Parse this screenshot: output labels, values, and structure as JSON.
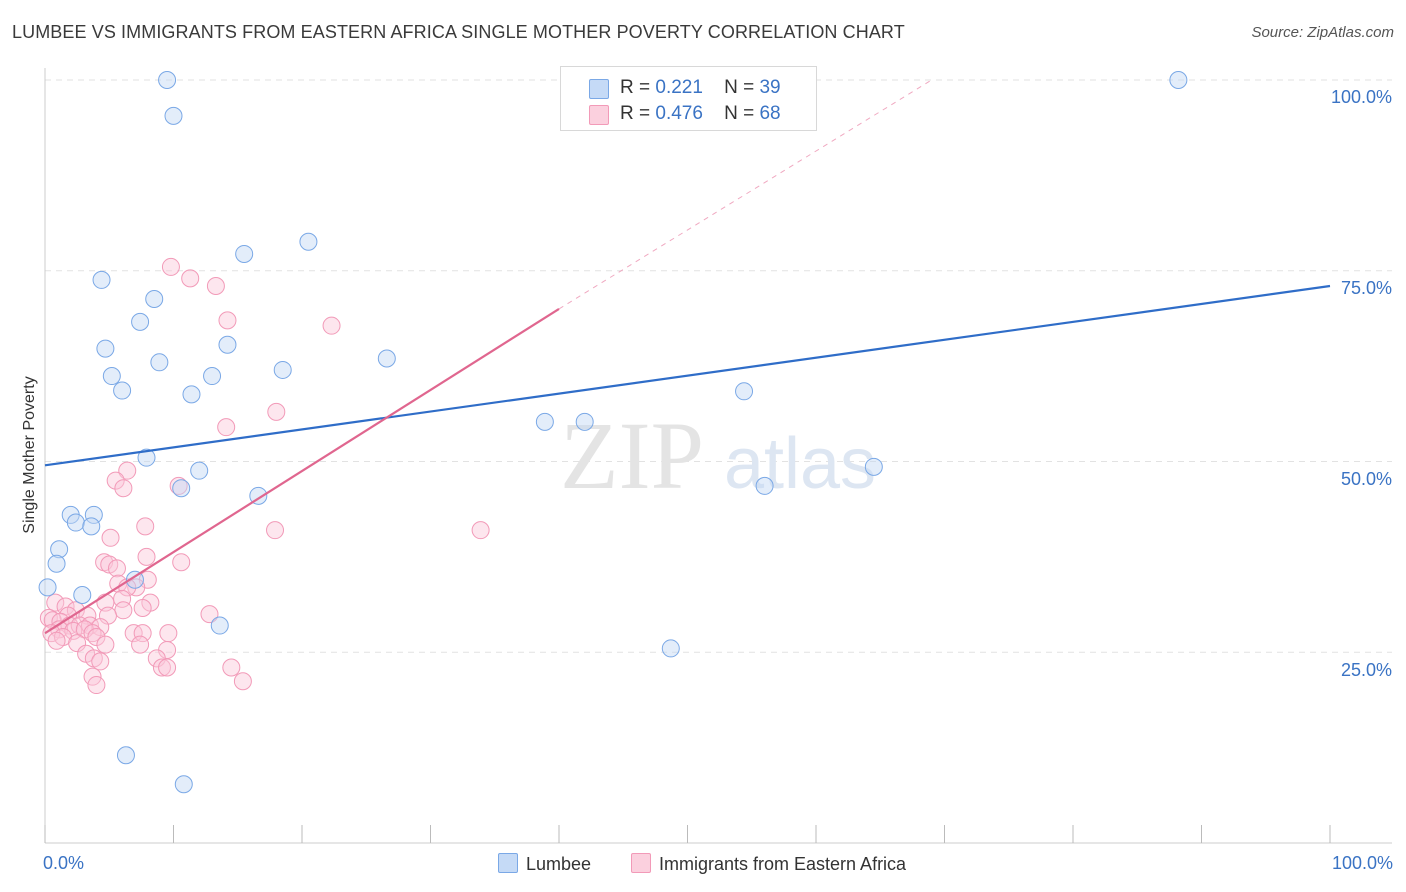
{
  "title": "LUMBEE VS IMMIGRANTS FROM EASTERN AFRICA SINGLE MOTHER POVERTY CORRELATION CHART",
  "source": "Source: ZipAtlas.com",
  "watermark": {
    "zip": "ZIP",
    "atlas": "atlas"
  },
  "legend_top": {
    "rows": [
      {
        "r_label": "R =",
        "r_value": "0.221",
        "n_label": "N =",
        "n_value": "39"
      },
      {
        "r_label": "R =",
        "r_value": "0.476",
        "n_label": "N =",
        "n_value": "68"
      }
    ]
  },
  "legend_bottom": {
    "series1": "Lumbee",
    "series2": "Immigrants from Eastern Africa"
  },
  "chart_data": {
    "type": "scatter",
    "title": "LUMBEE VS IMMIGRANTS FROM EASTERN AFRICA SINGLE MOTHER POVERTY CORRELATION CHART",
    "xlabel": "",
    "ylabel": "Single Mother Poverty",
    "xlim": [
      0,
      1
    ],
    "ylim": [
      0,
      1.03
    ],
    "x_tick_labels": [
      "0.0%",
      "100.0%"
    ],
    "y_ticks": [
      0.25,
      0.5,
      0.75,
      1.0
    ],
    "y_tick_labels": [
      "25.0%",
      "50.0%",
      "75.0%",
      "100.0%"
    ],
    "grid": true,
    "legend_position": "top-center",
    "colors": {
      "lumbee": "#7aa8e6",
      "eastern_africa": "#f29ab8",
      "lumbee_line": "#2f6dc8",
      "eastern_africa_line": "#e0668f"
    },
    "series": [
      {
        "name": "Lumbee",
        "r": 0.221,
        "n": 39,
        "trend": {
          "x": [
            0,
            1
          ],
          "y": [
            0.495,
            0.73
          ],
          "style": "solid"
        },
        "points": [
          [
            0.095,
            1.0
          ],
          [
            0.1,
            0.953
          ],
          [
            0.882,
            1.0
          ],
          [
            0.205,
            0.788
          ],
          [
            0.155,
            0.772
          ],
          [
            0.044,
            0.738
          ],
          [
            0.085,
            0.713
          ],
          [
            0.074,
            0.683
          ],
          [
            0.142,
            0.653
          ],
          [
            0.047,
            0.648
          ],
          [
            0.089,
            0.63
          ],
          [
            0.266,
            0.635
          ],
          [
            0.185,
            0.62
          ],
          [
            0.052,
            0.612
          ],
          [
            0.13,
            0.612
          ],
          [
            0.06,
            0.593
          ],
          [
            0.114,
            0.588
          ],
          [
            0.544,
            0.592
          ],
          [
            0.389,
            0.552
          ],
          [
            0.42,
            0.552
          ],
          [
            0.079,
            0.505
          ],
          [
            0.12,
            0.488
          ],
          [
            0.645,
            0.493
          ],
          [
            0.56,
            0.468
          ],
          [
            0.106,
            0.465
          ],
          [
            0.166,
            0.455
          ],
          [
            0.02,
            0.43
          ],
          [
            0.038,
            0.43
          ],
          [
            0.024,
            0.42
          ],
          [
            0.036,
            0.415
          ],
          [
            0.011,
            0.385
          ],
          [
            0.009,
            0.366
          ],
          [
            0.07,
            0.345
          ],
          [
            0.002,
            0.335
          ],
          [
            0.029,
            0.325
          ],
          [
            0.136,
            0.285
          ],
          [
            0.487,
            0.255
          ],
          [
            0.063,
            0.115
          ],
          [
            0.108,
            0.077
          ]
        ]
      },
      {
        "name": "Immigrants from Eastern Africa",
        "r": 0.476,
        "n": 68,
        "trend": {
          "x": [
            0,
            0.4
          ],
          "y": [
            0.275,
            0.7
          ],
          "style": "solid",
          "dashed_to": [
            0.69,
            1.0
          ]
        },
        "points": [
          [
            0.098,
            0.755
          ],
          [
            0.113,
            0.74
          ],
          [
            0.133,
            0.73
          ],
          [
            0.142,
            0.685
          ],
          [
            0.223,
            0.678
          ],
          [
            0.18,
            0.565
          ],
          [
            0.141,
            0.545
          ],
          [
            0.064,
            0.488
          ],
          [
            0.055,
            0.475
          ],
          [
            0.061,
            0.465
          ],
          [
            0.104,
            0.468
          ],
          [
            0.078,
            0.415
          ],
          [
            0.179,
            0.41
          ],
          [
            0.339,
            0.41
          ],
          [
            0.051,
            0.4
          ],
          [
            0.079,
            0.375
          ],
          [
            0.046,
            0.368
          ],
          [
            0.05,
            0.365
          ],
          [
            0.106,
            0.368
          ],
          [
            0.056,
            0.36
          ],
          [
            0.08,
            0.345
          ],
          [
            0.057,
            0.34
          ],
          [
            0.071,
            0.335
          ],
          [
            0.064,
            0.335
          ],
          [
            0.06,
            0.32
          ],
          [
            0.008,
            0.315
          ],
          [
            0.047,
            0.315
          ],
          [
            0.082,
            0.315
          ],
          [
            0.016,
            0.31
          ],
          [
            0.024,
            0.305
          ],
          [
            0.061,
            0.305
          ],
          [
            0.076,
            0.308
          ],
          [
            0.128,
            0.3
          ],
          [
            0.018,
            0.298
          ],
          [
            0.033,
            0.298
          ],
          [
            0.049,
            0.298
          ],
          [
            0.003,
            0.295
          ],
          [
            0.006,
            0.292
          ],
          [
            0.012,
            0.29
          ],
          [
            0.019,
            0.285
          ],
          [
            0.027,
            0.285
          ],
          [
            0.035,
            0.285
          ],
          [
            0.043,
            0.283
          ],
          [
            0.011,
            0.28
          ],
          [
            0.022,
            0.278
          ],
          [
            0.031,
            0.28
          ],
          [
            0.037,
            0.275
          ],
          [
            0.005,
            0.275
          ],
          [
            0.069,
            0.275
          ],
          [
            0.076,
            0.275
          ],
          [
            0.096,
            0.275
          ],
          [
            0.014,
            0.27
          ],
          [
            0.04,
            0.27
          ],
          [
            0.009,
            0.265
          ],
          [
            0.025,
            0.262
          ],
          [
            0.047,
            0.26
          ],
          [
            0.074,
            0.26
          ],
          [
            0.095,
            0.253
          ],
          [
            0.032,
            0.248
          ],
          [
            0.038,
            0.242
          ],
          [
            0.043,
            0.238
          ],
          [
            0.087,
            0.242
          ],
          [
            0.091,
            0.23
          ],
          [
            0.095,
            0.23
          ],
          [
            0.145,
            0.23
          ],
          [
            0.037,
            0.218
          ],
          [
            0.154,
            0.212
          ],
          [
            0.04,
            0.207
          ]
        ]
      }
    ]
  }
}
